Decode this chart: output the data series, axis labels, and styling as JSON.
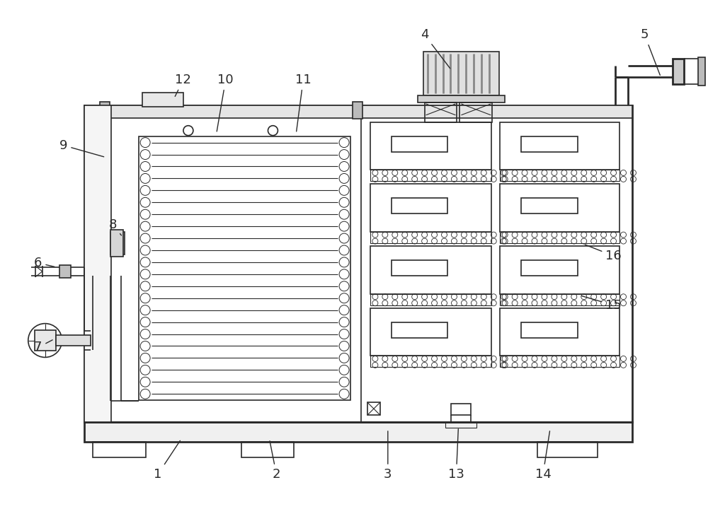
{
  "bg_color": "#ffffff",
  "line_color": "#2a2a2a",
  "lw_thin": 0.8,
  "lw_med": 1.2,
  "lw_thick": 2.0,
  "annotations": [
    [
      "1",
      222,
      672,
      255,
      622
    ],
    [
      "2",
      390,
      672,
      380,
      622
    ],
    [
      "3",
      548,
      672,
      548,
      608
    ],
    [
      "4",
      600,
      48,
      638,
      98
    ],
    [
      "5",
      912,
      48,
      935,
      108
    ],
    [
      "6",
      52,
      372,
      78,
      378
    ],
    [
      "7",
      52,
      492,
      75,
      480
    ],
    [
      "8",
      158,
      318,
      172,
      335
    ],
    [
      "9",
      88,
      205,
      148,
      222
    ],
    [
      "10",
      318,
      112,
      305,
      188
    ],
    [
      "11",
      428,
      112,
      418,
      188
    ],
    [
      "12",
      258,
      112,
      245,
      138
    ],
    [
      "13",
      645,
      672,
      648,
      605
    ],
    [
      "14",
      768,
      672,
      778,
      608
    ],
    [
      "15",
      868,
      432,
      820,
      418
    ],
    [
      "16",
      868,
      362,
      825,
      345
    ]
  ]
}
